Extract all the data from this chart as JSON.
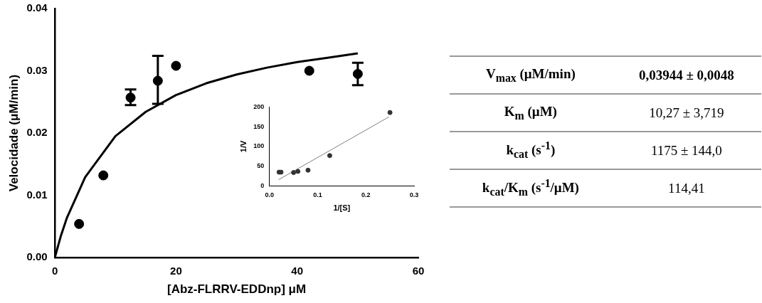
{
  "chart_data": [
    {
      "type": "scatter",
      "xlabel": "[Abz-FLRRV-EDDnp] μM",
      "ylabel": "Velocidade (μM/min)",
      "xlim": [
        0,
        60
      ],
      "xticks": [
        0,
        20,
        40,
        60
      ],
      "ylim": [
        0,
        0.04
      ],
      "yticks": [
        {
          "value": 0,
          "label": "0.00"
        },
        {
          "value": 0.01,
          "label": "0.01"
        },
        {
          "value": 0.02,
          "label": "0.02"
        },
        {
          "value": 0.03,
          "label": "0.03"
        },
        {
          "value": 0.04,
          "label": "0.04"
        }
      ],
      "marker": "circle",
      "series": [
        {
          "type": "scatter",
          "color": "#000000",
          "x": [
            4,
            8,
            12.5,
            17,
            20,
            42,
            50
          ],
          "values": [
            0.0054,
            0.0132,
            0.0257,
            0.0284,
            0.0308,
            0.03,
            0.0295
          ],
          "errors": [
            null,
            null,
            [
              0.0245,
              0.027
            ],
            [
              0.0247,
              0.0324
            ],
            null,
            null,
            [
              0.0277,
              0.0313
            ]
          ]
        },
        {
          "type": "line",
          "color": "#000000",
          "marker": "none",
          "x": [
            0,
            1,
            2,
            5,
            10,
            15,
            20,
            25,
            30,
            35,
            40,
            45,
            50
          ],
          "values": [
            0,
            0.0035,
            0.0064,
            0.0129,
            0.0195,
            0.0234,
            0.0261,
            0.028,
            0.0294,
            0.0305,
            0.0314,
            0.0321,
            0.0328
          ]
        }
      ]
    },
    {
      "type": "scatter",
      "xlabel": "1/[S]",
      "ylabel": "1/V",
      "xlim": [
        0,
        0.3
      ],
      "xticks": [
        {
          "value": 0,
          "label": "0.0"
        },
        {
          "value": 0.1,
          "label": "0.1"
        },
        {
          "value": 0.2,
          "label": "0.2"
        },
        {
          "value": 0.3,
          "label": "0.3"
        }
      ],
      "ylim": [
        0,
        200
      ],
      "yticks": [
        0,
        50,
        100,
        150,
        200
      ],
      "marker": "circle",
      "series": [
        {
          "type": "scatter",
          "color": "#333333",
          "x": [
            0.02,
            0.024,
            0.05,
            0.059,
            0.08,
            0.125,
            0.25
          ],
          "values": [
            35,
            35,
            34,
            37,
            40,
            77,
            186
          ]
        },
        {
          "type": "line",
          "color": "#808080",
          "marker": "none",
          "x": [
            0.019,
            0.248
          ],
          "values": [
            16,
            175
          ]
        }
      ]
    },
    {
      "type": "other",
      "annotations": [
        "V$_{max}$ (μM/min)",
        "0,03944 ± 0,0048",
        "K$_{m}$ (μM)",
        "10,27 ± 3,719",
        "k$_{cat}$ (s$^{-1}$)",
        "1175 ± 144,0",
        "k$_{cat}$/K$_{m}$ (s$^{-1}$/μM)",
        "114,41"
      ]
    }
  ]
}
